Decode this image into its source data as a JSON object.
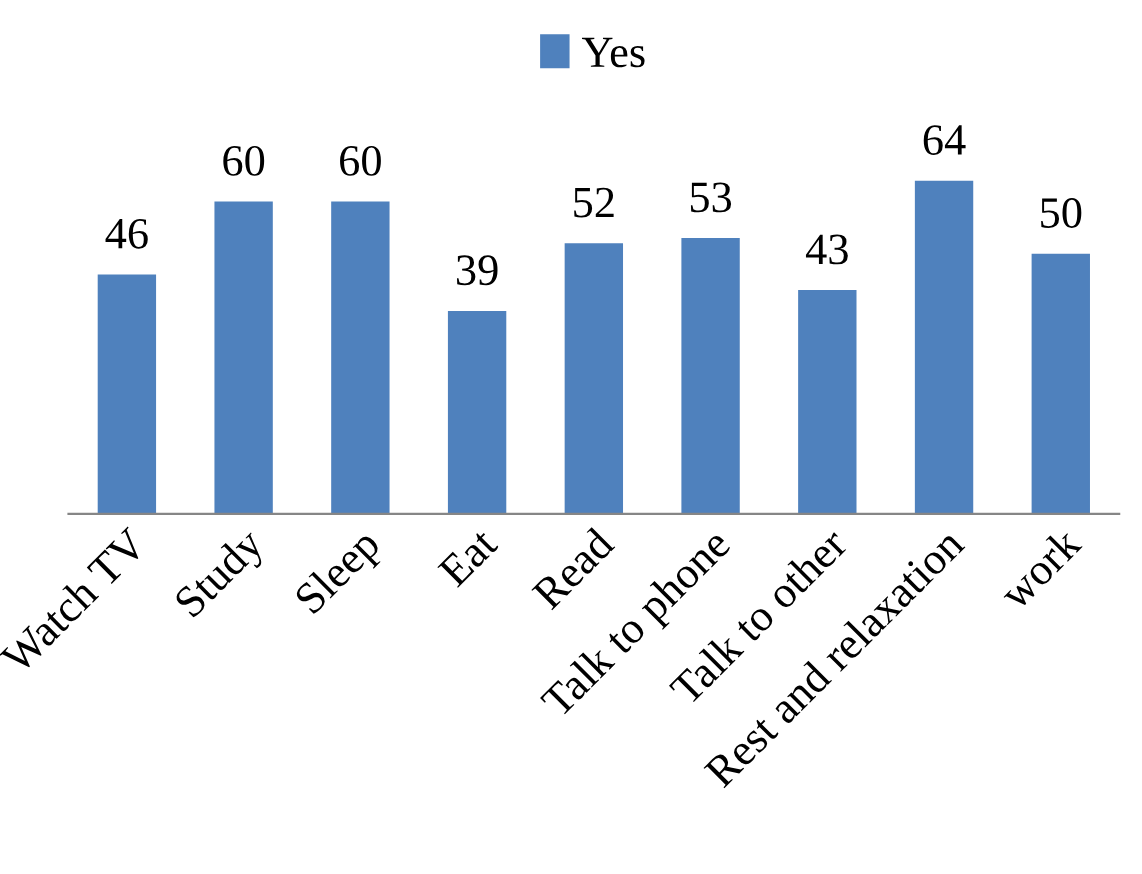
{
  "chart_data": {
    "type": "bar",
    "categories": [
      "Watch TV",
      "Study",
      "Sleep",
      "Eat",
      "Read",
      "Talk to phone",
      "Talk to other",
      "Rest and relaxation",
      "work"
    ],
    "series": [
      {
        "name": "Yes",
        "color": "#4f81bd",
        "values": [
          46,
          60,
          60,
          39,
          52,
          53,
          43,
          64,
          50
        ]
      }
    ],
    "data_labels": true,
    "legend": "top",
    "grid": false
  }
}
